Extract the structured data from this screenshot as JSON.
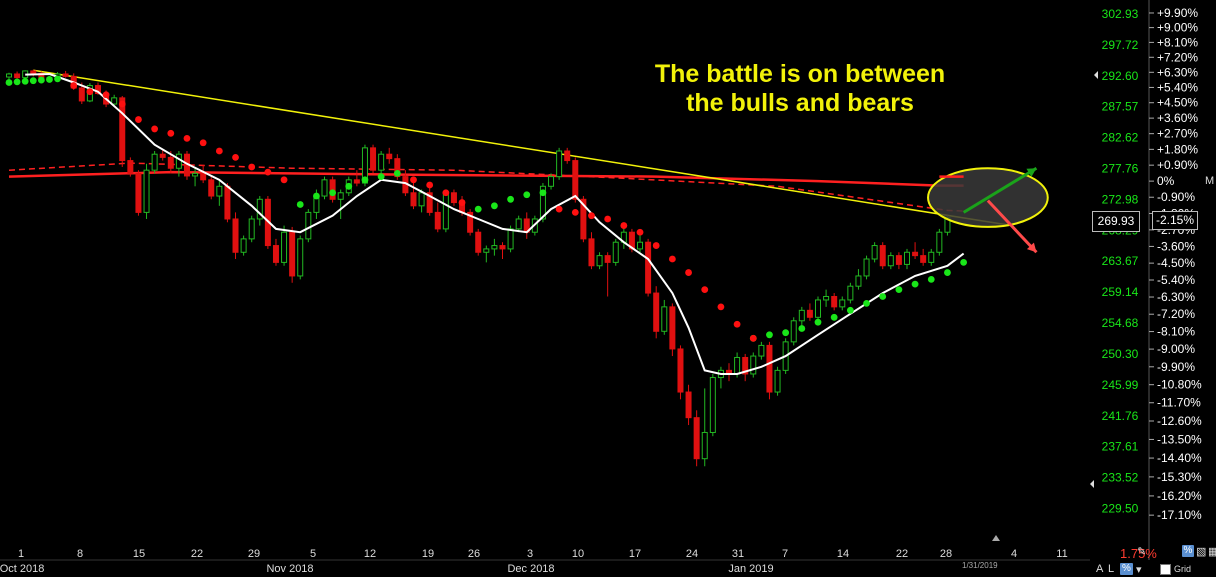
{
  "annotation": {
    "line1": "The battle is on between",
    "line2": "the bulls and bears"
  },
  "last_price_label": "269.93",
  "last_pct_label": "-2.15%",
  "marker_m": "M",
  "change_label": "1.75%",
  "date_marker": "1/31/2019",
  "controls": {
    "a": "A",
    "l": "L",
    "grid": "Grid",
    "pct_btn": "%"
  },
  "colors": {
    "up_candle": "#22b822",
    "down_candle": "#e01010",
    "bull_dots": "#19e619",
    "bear_dots": "#ff1010",
    "sma_fast": "#ffffff",
    "ma_200": "#ff2020",
    "trendline": "#f2f20a",
    "ellipse_fill": "#3a3a3a",
    "price_axis_text": "#19e619",
    "pct_axis_text": "#ffffff"
  },
  "chart_data": {
    "type": "candlestick",
    "x_axis": {
      "tick_labels": [
        "1",
        "8",
        "15",
        "22",
        "29",
        "5",
        "12",
        "19",
        "26",
        "3",
        "10",
        "17",
        "24",
        "31",
        "7",
        "14",
        "22",
        "28",
        "4",
        "11"
      ],
      "month_labels": [
        "Oct 2018",
        "Nov 2018",
        "Dec 2018",
        "Jan 2019"
      ]
    },
    "price_axis": {
      "ticks": [
        302.93,
        297.72,
        292.6,
        287.57,
        282.62,
        277.76,
        272.98,
        268.29,
        263.67,
        259.14,
        254.68,
        250.3,
        245.99,
        241.76,
        237.61,
        233.52,
        229.5
      ],
      "labels": [
        "302.93",
        "297.72",
        "292.60",
        "287.57",
        "282.62",
        "277.76",
        "272.98",
        "268.29",
        "263.67",
        "259.14",
        "254.68",
        "250.30",
        "245.99",
        "241.76",
        "237.61",
        "233.52",
        "229.50"
      ],
      "log_scale": true
    },
    "pct_axis": {
      "labels": [
        "+9.90%",
        "+9.00%",
        "+8.10%",
        "+7.20%",
        "+6.30%",
        "+5.40%",
        "+4.50%",
        "+3.60%",
        "+2.70%",
        "+1.80%",
        "+0.90%",
        "0%",
        "-0.90%",
        "-1.80%",
        "-2.70%",
        "-3.60%",
        "-4.50%",
        "-5.40%",
        "-6.30%",
        "-7.20%",
        "-8.10%",
        "-9.00%",
        "-9.90%",
        "-10.80%",
        "-11.70%",
        "-12.60%",
        "-13.50%",
        "-14.40%",
        "-15.30%",
        "-16.20%",
        "-17.10%"
      ],
      "values": [
        9.9,
        9.0,
        8.1,
        7.2,
        6.3,
        5.4,
        4.5,
        3.6,
        2.7,
        1.8,
        0.9,
        0,
        -0.9,
        -1.8,
        -2.7,
        -3.6,
        -4.5,
        -5.4,
        -6.3,
        -7.2,
        -8.1,
        -9.0,
        -9.9,
        -10.8,
        -11.7,
        -12.6,
        -13.5,
        -14.4,
        -15.3,
        -16.2,
        -17.1
      ],
      "base_price": 275.8
    },
    "candles": [
      [
        0,
        292.4,
        293.1,
        292.0,
        292.9
      ],
      [
        1,
        292.9,
        293.3,
        292.1,
        292.3
      ],
      [
        2,
        292.3,
        293.5,
        291.8,
        293.4
      ],
      [
        3,
        293.4,
        293.6,
        292.5,
        293.0
      ],
      [
        4,
        293.0,
        293.3,
        291.7,
        291.9
      ],
      [
        5,
        291.9,
        292.5,
        291.5,
        292.3
      ],
      [
        6,
        292.3,
        293.2,
        292.1,
        292.9
      ],
      [
        7,
        292.9,
        293.4,
        292.3,
        292.5
      ],
      [
        8,
        292.5,
        293.0,
        290.3,
        290.6
      ],
      [
        9,
        290.6,
        291.5,
        288.0,
        288.5
      ],
      [
        10,
        288.5,
        291.4,
        288.3,
        291.0
      ],
      [
        11,
        291.0,
        291.5,
        289.5,
        289.7
      ],
      [
        12,
        289.7,
        290.2,
        287.5,
        288.0
      ],
      [
        13,
        288.0,
        289.5,
        287.8,
        289.0
      ],
      [
        14,
        289.0,
        289.3,
        278.0,
        279.0
      ],
      [
        15,
        279.0,
        279.5,
        276.5,
        277.0
      ],
      [
        16,
        277.0,
        277.5,
        270.5,
        271.0
      ],
      [
        17,
        271.0,
        278.5,
        270.0,
        277.5
      ],
      [
        18,
        277.5,
        280.5,
        277.0,
        280.0
      ],
      [
        19,
        280.0,
        280.8,
        279.0,
        279.5
      ],
      [
        20,
        279.5,
        280.5,
        277.0,
        277.8
      ],
      [
        21,
        277.8,
        280.5,
        276.5,
        280.0
      ],
      [
        22,
        280.0,
        280.5,
        276.0,
        276.6
      ],
      [
        23,
        276.6,
        278.0,
        275.0,
        277.0
      ],
      [
        24,
        277.0,
        278.3,
        275.5,
        276.0
      ],
      [
        25,
        276.0,
        276.7,
        273.0,
        273.5
      ],
      [
        26,
        273.5,
        276.0,
        272.0,
        275.0
      ],
      [
        27,
        275.0,
        275.5,
        269.5,
        270.0
      ],
      [
        28,
        270.0,
        271.0,
        264.0,
        265.0
      ],
      [
        29,
        265.0,
        267.5,
        264.5,
        267.0
      ],
      [
        30,
        267.0,
        270.5,
        266.5,
        270.0
      ],
      [
        31,
        270.0,
        273.5,
        269.0,
        273.0
      ],
      [
        32,
        273.0,
        273.5,
        265.5,
        266.0
      ],
      [
        33,
        266.0,
        267.0,
        263.0,
        263.5
      ],
      [
        34,
        263.5,
        269.0,
        263.0,
        268.0
      ],
      [
        35,
        268.0,
        268.8,
        260.5,
        261.5
      ],
      [
        36,
        261.5,
        267.5,
        261.0,
        267.0
      ],
      [
        37,
        267.0,
        271.5,
        266.5,
        271.0
      ],
      [
        38,
        271.0,
        274.5,
        270.0,
        273.5
      ],
      [
        39,
        273.5,
        276.5,
        273.0,
        276.0
      ],
      [
        40,
        276.0,
        276.5,
        272.5,
        273.0
      ],
      [
        41,
        273.0,
        274.5,
        270.0,
        274.0
      ],
      [
        42,
        274.0,
        276.5,
        273.5,
        276.0
      ],
      [
        43,
        276.0,
        277.5,
        275.0,
        275.5
      ],
      [
        44,
        275.5,
        281.5,
        275.0,
        281.0
      ],
      [
        45,
        281.0,
        281.5,
        277.0,
        277.5
      ],
      [
        46,
        277.5,
        280.5,
        276.5,
        280.0
      ],
      [
        47,
        280.0,
        281.0,
        278.5,
        279.3
      ],
      [
        48,
        279.3,
        280.0,
        276.0,
        276.5
      ],
      [
        49,
        276.5,
        277.5,
        273.5,
        274.0
      ],
      [
        50,
        274.0,
        275.5,
        271.5,
        272.0
      ],
      [
        51,
        272.0,
        274.5,
        271.0,
        274.0
      ],
      [
        52,
        274.0,
        275.0,
        270.5,
        271.0
      ],
      [
        53,
        271.0,
        272.5,
        268.0,
        268.5
      ],
      [
        54,
        268.5,
        274.5,
        268.0,
        274.0
      ],
      [
        55,
        274.0,
        274.5,
        272.0,
        272.5
      ],
      [
        56,
        272.5,
        273.5,
        270.5,
        271.0
      ],
      [
        57,
        271.0,
        271.5,
        267.5,
        268.0
      ],
      [
        58,
        268.0,
        268.5,
        264.5,
        265.0
      ],
      [
        59,
        265.0,
        266.0,
        263.5,
        265.5
      ],
      [
        60,
        265.5,
        267.0,
        264.5,
        266.0
      ],
      [
        61,
        266.0,
        266.5,
        264.0,
        265.5
      ],
      [
        62,
        265.5,
        269.0,
        265.0,
        268.5
      ],
      [
        63,
        268.5,
        270.5,
        268.0,
        270.0
      ],
      [
        64,
        270.0,
        271.0,
        267.0,
        268.0
      ],
      [
        65,
        268.0,
        270.5,
        267.5,
        270.0
      ],
      [
        66,
        270.0,
        275.5,
        269.5,
        275.0
      ],
      [
        67,
        275.0,
        277.0,
        274.5,
        276.5
      ],
      [
        68,
        276.5,
        281.0,
        276.0,
        280.5
      ],
      [
        69,
        280.5,
        281.0,
        278.5,
        279.0
      ],
      [
        70,
        279.0,
        279.5,
        272.5,
        273.0
      ],
      [
        71,
        273.0,
        273.5,
        266.5,
        267.0
      ],
      [
        72,
        267.0,
        268.0,
        262.5,
        263.0
      ],
      [
        73,
        263.0,
        265.0,
        262.5,
        264.5
      ],
      [
        74,
        264.5,
        265.0,
        258.5,
        263.5
      ],
      [
        75,
        263.5,
        267.0,
        263.0,
        266.5
      ],
      [
        76,
        266.5,
        269.0,
        265.5,
        268.0
      ],
      [
        77,
        268.0,
        268.5,
        265.0,
        265.5
      ],
      [
        78,
        265.5,
        267.5,
        265.0,
        266.5
      ],
      [
        79,
        266.5,
        267.0,
        258.5,
        259.0
      ],
      [
        80,
        259.0,
        260.0,
        252.5,
        253.5
      ],
      [
        81,
        253.5,
        258.0,
        253.0,
        257.0
      ],
      [
        82,
        257.0,
        257.5,
        250.0,
        251.0
      ],
      [
        83,
        251.0,
        251.5,
        244.0,
        245.0
      ],
      [
        84,
        245.0,
        246.0,
        240.5,
        241.5
      ],
      [
        85,
        241.5,
        242.5,
        235.0,
        236.0
      ],
      [
        86,
        236.0,
        245.5,
        235.0,
        239.5
      ],
      [
        87,
        239.5,
        247.5,
        239.0,
        247.0
      ],
      [
        88,
        247.0,
        248.5,
        245.5,
        248.0
      ],
      [
        89,
        248.0,
        249.0,
        246.5,
        247.5
      ],
      [
        90,
        247.5,
        250.5,
        247.0,
        249.8
      ],
      [
        91,
        249.8,
        250.3,
        246.5,
        247.5
      ],
      [
        92,
        247.5,
        250.5,
        247.0,
        250.0
      ],
      [
        93,
        250.0,
        252.0,
        249.5,
        251.5
      ],
      [
        94,
        251.5,
        252.0,
        244.0,
        245.0
      ],
      [
        95,
        245.0,
        248.5,
        244.5,
        248.0
      ],
      [
        96,
        248.0,
        252.5,
        247.5,
        252.0
      ],
      [
        97,
        252.0,
        255.5,
        251.5,
        255.0
      ],
      [
        98,
        255.0,
        257.0,
        254.0,
        256.5
      ],
      [
        99,
        256.5,
        257.5,
        255.0,
        255.5
      ],
      [
        100,
        255.5,
        258.5,
        255.0,
        258.0
      ],
      [
        101,
        258.0,
        259.5,
        257.0,
        258.5
      ],
      [
        102,
        258.5,
        259.0,
        256.5,
        257.0
      ],
      [
        103,
        257.0,
        258.5,
        256.5,
        258.0
      ],
      [
        104,
        258.0,
        260.5,
        257.5,
        260.0
      ],
      [
        105,
        260.0,
        262.5,
        259.5,
        261.5
      ],
      [
        106,
        261.5,
        264.5,
        261.0,
        264.0
      ],
      [
        107,
        264.0,
        266.5,
        263.5,
        266.0
      ],
      [
        108,
        266.0,
        266.5,
        262.5,
        263.0
      ],
      [
        109,
        263.0,
        265.0,
        262.5,
        264.5
      ],
      [
        110,
        264.5,
        265.0,
        262.5,
        263.2
      ],
      [
        111,
        263.2,
        265.5,
        262.5,
        265.0
      ],
      [
        112,
        265.0,
        266.5,
        264.0,
        264.5
      ],
      [
        113,
        264.5,
        265.5,
        263.0,
        263.5
      ],
      [
        114,
        263.5,
        265.5,
        263.0,
        265.0
      ],
      [
        115,
        265.0,
        268.5,
        264.5,
        268.0
      ],
      [
        116,
        268.0,
        270.5,
        267.5,
        270.2
      ]
    ],
    "bull_dots": [
      [
        0,
        291.5
      ],
      [
        1,
        291.6
      ],
      [
        2,
        291.7
      ],
      [
        3,
        291.8
      ],
      [
        4,
        291.9
      ],
      [
        5,
        292.0
      ],
      [
        6,
        292.1
      ],
      [
        36,
        272.2
      ],
      [
        38,
        273.5
      ],
      [
        40,
        274.0
      ],
      [
        42,
        275.0
      ],
      [
        44,
        276.0
      ],
      [
        46,
        276.5
      ],
      [
        48,
        277.0
      ],
      [
        58,
        271.5
      ],
      [
        60,
        272.0
      ],
      [
        62,
        273.0
      ],
      [
        64,
        273.7
      ],
      [
        66,
        274.0
      ],
      [
        92,
        252.5
      ],
      [
        94,
        253.0
      ],
      [
        96,
        253.3
      ],
      [
        98,
        253.9
      ],
      [
        100,
        254.8
      ],
      [
        102,
        255.5
      ],
      [
        104,
        256.5
      ],
      [
        106,
        257.5
      ],
      [
        108,
        258.5
      ],
      [
        110,
        259.5
      ],
      [
        112,
        260.3
      ],
      [
        114,
        261.0
      ],
      [
        116,
        262.0
      ],
      [
        118,
        263.5
      ]
    ],
    "bear_dots": [
      [
        8,
        291.0
      ],
      [
        10,
        290.0
      ],
      [
        12,
        289.5
      ],
      [
        14,
        288.0
      ],
      [
        16,
        285.5
      ],
      [
        18,
        284.0
      ],
      [
        20,
        283.3
      ],
      [
        22,
        282.5
      ],
      [
        24,
        281.8
      ],
      [
        26,
        280.5
      ],
      [
        28,
        279.5
      ],
      [
        30,
        278.0
      ],
      [
        32,
        277.2
      ],
      [
        34,
        276.0
      ],
      [
        50,
        276.0
      ],
      [
        52,
        275.2
      ],
      [
        54,
        274.0
      ],
      [
        56,
        272.5
      ],
      [
        68,
        271.5
      ],
      [
        70,
        271.0
      ],
      [
        72,
        270.5
      ],
      [
        74,
        270.0
      ],
      [
        76,
        269.0
      ],
      [
        78,
        268.0
      ],
      [
        80,
        266.0
      ],
      [
        82,
        264.0
      ],
      [
        84,
        262.0
      ],
      [
        86,
        259.5
      ],
      [
        88,
        257.0
      ],
      [
        90,
        254.5
      ],
      [
        92,
        252.5
      ]
    ],
    "sma_fast": [
      [
        2,
        292.8
      ],
      [
        5,
        292.9
      ],
      [
        8,
        291.5
      ],
      [
        11,
        290.0
      ],
      [
        14,
        286.5
      ],
      [
        18,
        281.5
      ],
      [
        22,
        278.5
      ],
      [
        26,
        276.0
      ],
      [
        30,
        272.0
      ],
      [
        33,
        268.5
      ],
      [
        36,
        268.0
      ],
      [
        40,
        270.5
      ],
      [
        43,
        273.5
      ],
      [
        46,
        276.0
      ],
      [
        49,
        275.5
      ],
      [
        52,
        273.5
      ],
      [
        55,
        271.5
      ],
      [
        58,
        270.0
      ],
      [
        61,
        268.5
      ],
      [
        64,
        268.0
      ],
      [
        67,
        271.5
      ],
      [
        70,
        273.5
      ],
      [
        73,
        269.5
      ],
      [
        76,
        266.5
      ],
      [
        79,
        264.0
      ],
      [
        82,
        259.0
      ],
      [
        84,
        254.0
      ],
      [
        86,
        248.0
      ],
      [
        88,
        247.5
      ],
      [
        90,
        247.5
      ],
      [
        93,
        248.5
      ],
      [
        96,
        250.0
      ],
      [
        100,
        253.0
      ],
      [
        104,
        256.0
      ],
      [
        108,
        259.0
      ],
      [
        112,
        261.5
      ],
      [
        116,
        263.0
      ],
      [
        118,
        264.8
      ]
    ],
    "ma_200": [
      [
        0,
        276.5
      ],
      [
        20,
        277.2
      ],
      [
        50,
        276.8
      ],
      [
        80,
        276.5
      ],
      [
        100,
        275.8
      ],
      [
        115,
        275.1
      ],
      [
        118,
        275.1
      ]
    ],
    "ma_dashed": [
      [
        0,
        277.5
      ],
      [
        15,
        278.6
      ],
      [
        35,
        277.8
      ],
      [
        55,
        277.5
      ],
      [
        75,
        276.3
      ],
      [
        95,
        275.0
      ],
      [
        108,
        272.7
      ],
      [
        116,
        271.3
      ],
      [
        118,
        271.2
      ]
    ],
    "trendline": [
      [
        3,
        293.5
      ],
      [
        124,
        269.0
      ]
    ],
    "bull_arrow": {
      "from": [
        118,
        271.0
      ],
      "to": [
        127,
        277.8
      ]
    },
    "bear_arrow": {
      "from": [
        121,
        272.8
      ],
      "to": [
        127,
        265.0
      ]
    },
    "ellipse": {
      "cx": 121.0,
      "cy": 273.3,
      "rx_bars": 7.4,
      "price_top": 277.8,
      "price_bottom": 268.8
    },
    "last_price": 269.93
  }
}
